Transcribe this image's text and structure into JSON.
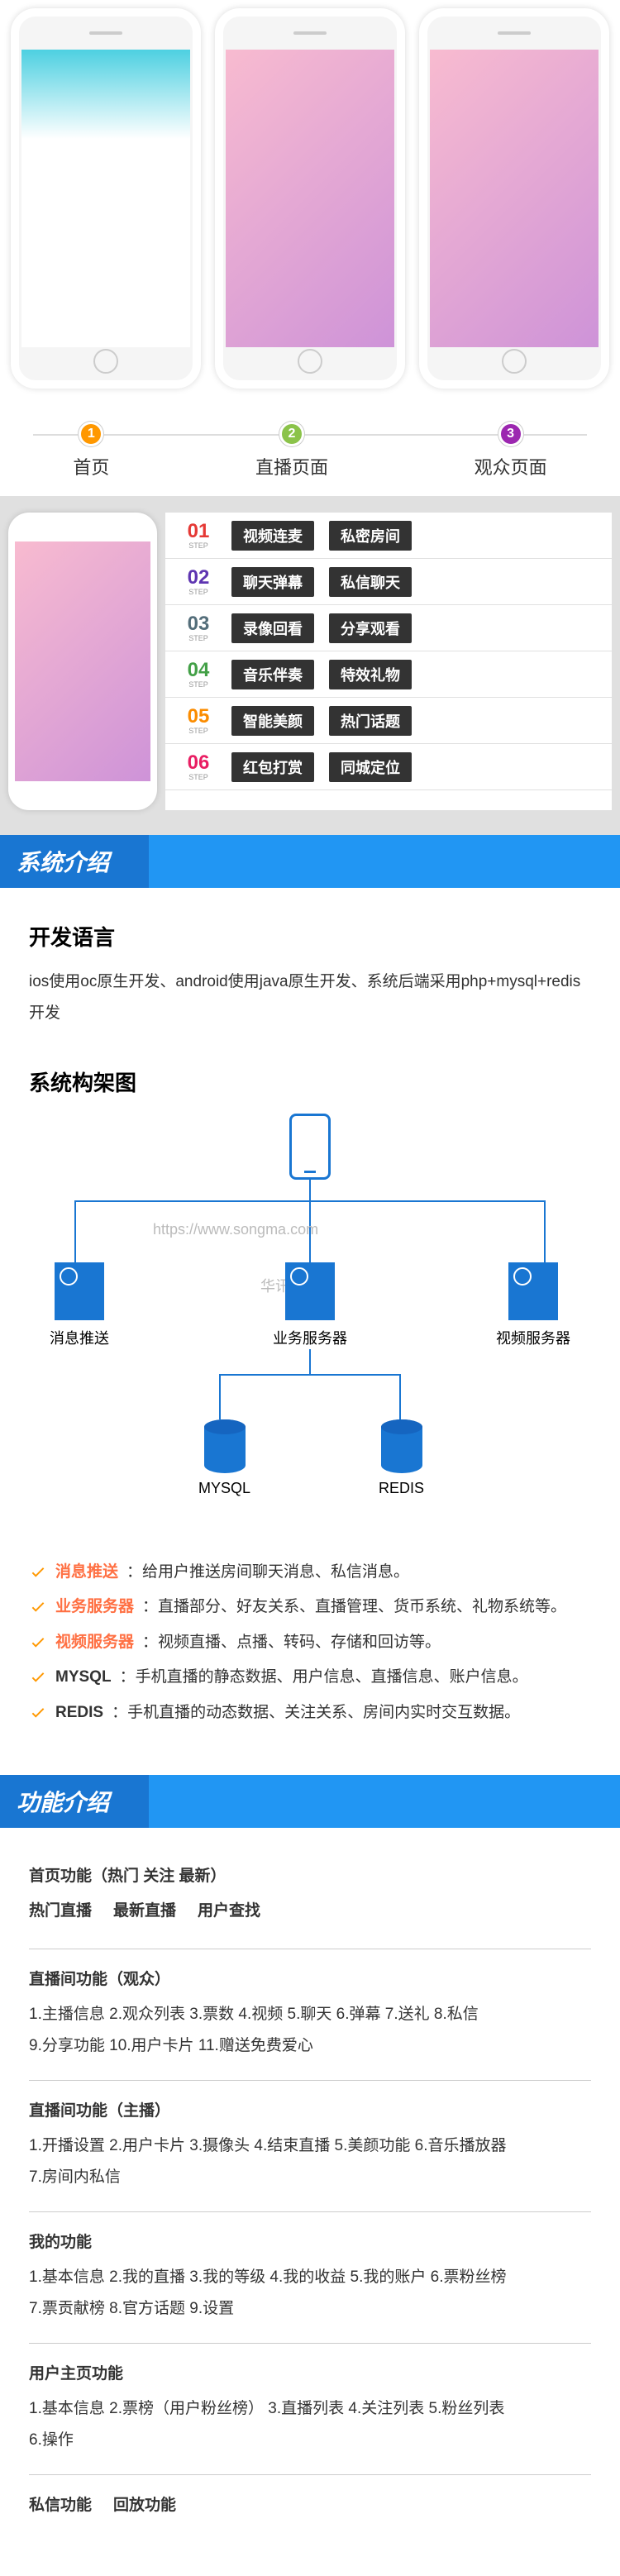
{
  "phones": {
    "labels": [
      "首页",
      "直播页面",
      "观众页面"
    ],
    "step_nums": [
      "1",
      "2",
      "3"
    ]
  },
  "features": {
    "rows": [
      {
        "num": "01",
        "cls": "s1",
        "f1": "视频连麦",
        "f2": "私密房间"
      },
      {
        "num": "02",
        "cls": "s2",
        "f1": "聊天弹幕",
        "f2": "私信聊天"
      },
      {
        "num": "03",
        "cls": "s3",
        "f1": "录像回看",
        "f2": "分享观看"
      },
      {
        "num": "04",
        "cls": "s4",
        "f1": "音乐伴奏",
        "f2": "特效礼物"
      },
      {
        "num": "05",
        "cls": "s5",
        "f1": "智能美颜",
        "f2": "热门话题"
      },
      {
        "num": "06",
        "cls": "s6",
        "f1": "红包打赏",
        "f2": "同城定位"
      }
    ],
    "step_text": "STEP"
  },
  "section_headers": {
    "system": "系统介绍",
    "functions": "功能介绍"
  },
  "system": {
    "dev_lang_title": "开发语言",
    "dev_lang_body": "ios使用oc原生开发、android使用java原生开发、系统后端采用php+mysql+redis开发",
    "arch_title": "系统构架图",
    "watermark1": "https://www.songma.com",
    "watermark2": "华讯酷酷鱼",
    "nodes": {
      "push": "消息推送",
      "biz": "业务服务器",
      "video": "视频服务器",
      "mysql": "MYSQL",
      "redis": "REDIS"
    },
    "services": [
      {
        "label": "消息推送",
        "dark": false,
        "desc": "：给用户推送房间聊天消息、私信消息。"
      },
      {
        "label": "业务服务器",
        "dark": false,
        "desc": "：直播部分、好友关系、直播管理、货币系统、礼物系统等。"
      },
      {
        "label": "视频服务器",
        "dark": false,
        "desc": "：视频直播、点播、转码、存储和回访等。"
      },
      {
        "label": "MYSQL",
        "dark": true,
        "desc": "：手机直播的静态数据、用户信息、直播信息、账户信息。"
      },
      {
        "label": "REDIS",
        "dark": true,
        "desc": "：手机直播的动态数据、关注关系、房间内实时交互数据。"
      }
    ]
  },
  "functions": {
    "groups": [
      {
        "title": "首页功能（热门 关注 最新）",
        "items_inline": [
          "热门直播",
          "最新直播",
          "用户查找"
        ],
        "items": []
      },
      {
        "title": "直播间功能（观众）",
        "items": [
          "1.主播信息  2.观众列表  3.票数  4.视频  5.聊天  6.弹幕  7.送礼  8.私信",
          "9.分享功能  10.用户卡片  11.赠送免费爱心"
        ]
      },
      {
        "title": "直播间功能（主播）",
        "items": [
          "1.开播设置  2.用户卡片  3.摄像头  4.结束直播  5.美颜功能  6.音乐播放器",
          "7.房间内私信"
        ]
      },
      {
        "title": "我的功能",
        "items": [
          "1.基本信息  2.我的直播  3.我的等级  4.我的收益  5.我的账户  6.票粉丝榜",
          "7.票贡献榜  8.官方话题  9.设置"
        ]
      },
      {
        "title": "用户主页功能",
        "items": [
          "1.基本信息  2.票榜（用户粉丝榜）  3.直播列表  4.关注列表  5.粉丝列表",
          "6.操作"
        ]
      }
    ],
    "footer_inline": [
      "私信功能",
      "回放功能"
    ]
  }
}
